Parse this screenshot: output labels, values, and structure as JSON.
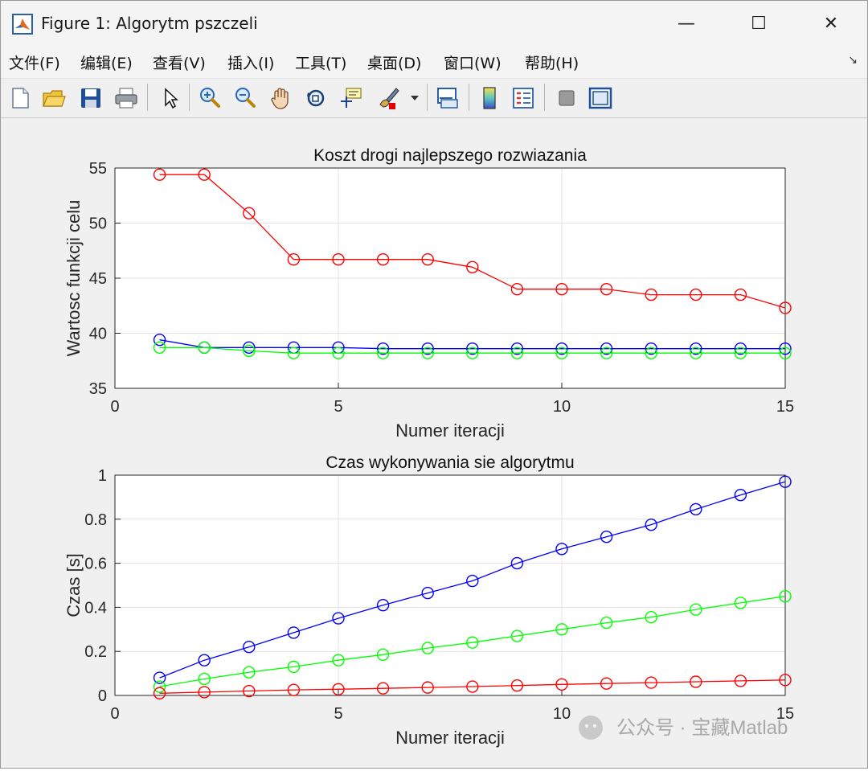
{
  "window": {
    "title": "Figure 1: Algorytm pszczeli",
    "minimize_symbol": "—",
    "maximize_symbol": "☐",
    "close_symbol": "✕"
  },
  "menu": {
    "items": [
      "文件(F)",
      "编辑(E)",
      "查看(V)",
      "插入(I)",
      "工具(T)",
      "桌面(D)",
      "窗口(W)",
      "帮助(H)"
    ],
    "overflow_symbol": "↘"
  },
  "toolbar": {
    "icons": [
      "new-figure-icon",
      "open-file-icon",
      "save-icon",
      "print-icon",
      "pointer-icon",
      "zoom-in-icon",
      "zoom-out-icon",
      "pan-icon",
      "rotate-3d-icon",
      "data-cursor-icon",
      "brush-icon",
      "dropdown-arrow-icon",
      "link-plot-icon",
      "colorbar-icon",
      "legend-icon",
      "hide-plot-tools-icon",
      "show-plot-tools-icon"
    ]
  },
  "colors": {
    "red": "#ff0000",
    "blue": "#0000ff",
    "green": "#00ff00"
  },
  "watermark": {
    "text": "公众号 · 宝藏Matlab"
  },
  "chart_data": [
    {
      "type": "line",
      "title": "Koszt drogi najlepszego rozwiazania",
      "xlabel": "Numer iteracji",
      "ylabel": "Wartosc funkcji celu",
      "xlim": [
        0,
        15
      ],
      "ylim": [
        35,
        55
      ],
      "xticks": [
        0,
        5,
        10,
        15
      ],
      "yticks": [
        35,
        40,
        45,
        50,
        55
      ],
      "grid": true,
      "marker": "circle",
      "x": [
        1,
        2,
        3,
        4,
        5,
        6,
        7,
        8,
        9,
        10,
        11,
        12,
        13,
        14,
        15
      ],
      "series": [
        {
          "color": "#ff0000",
          "values": [
            54.4,
            54.4,
            50.9,
            46.7,
            46.7,
            46.7,
            46.7,
            46.0,
            44.0,
            44.0,
            44.0,
            43.5,
            43.5,
            43.5,
            42.3
          ]
        },
        {
          "color": "#0000ff",
          "values": [
            39.4,
            38.7,
            38.7,
            38.7,
            38.7,
            38.6,
            38.6,
            38.6,
            38.6,
            38.6,
            38.6,
            38.6,
            38.6,
            38.6,
            38.6
          ]
        },
        {
          "color": "#00ff00",
          "values": [
            38.7,
            38.7,
            38.4,
            38.2,
            38.2,
            38.2,
            38.2,
            38.2,
            38.2,
            38.2,
            38.2,
            38.2,
            38.2,
            38.2,
            38.2
          ]
        }
      ]
    },
    {
      "type": "line",
      "title": "Czas wykonywania sie algorytmu",
      "xlabel": "Numer iteracji",
      "ylabel": "Czas [s]",
      "xlim": [
        0,
        15
      ],
      "ylim": [
        0,
        1
      ],
      "xticks": [
        0,
        5,
        10,
        15
      ],
      "yticks": [
        0,
        0.2,
        0.4,
        0.6,
        0.8,
        1
      ],
      "grid": true,
      "marker": "circle",
      "x": [
        1,
        2,
        3,
        4,
        5,
        6,
        7,
        8,
        9,
        10,
        11,
        12,
        13,
        14,
        15
      ],
      "series": [
        {
          "color": "#0000ff",
          "values": [
            0.08,
            0.16,
            0.22,
            0.285,
            0.35,
            0.41,
            0.465,
            0.52,
            0.6,
            0.665,
            0.72,
            0.775,
            0.845,
            0.91,
            0.97
          ]
        },
        {
          "color": "#00ff00",
          "values": [
            0.04,
            0.075,
            0.105,
            0.13,
            0.16,
            0.185,
            0.215,
            0.24,
            0.27,
            0.3,
            0.33,
            0.355,
            0.39,
            0.42,
            0.45
          ]
        },
        {
          "color": "#ff0000",
          "values": [
            0.01,
            0.015,
            0.02,
            0.025,
            0.028,
            0.032,
            0.036,
            0.04,
            0.045,
            0.05,
            0.054,
            0.058,
            0.062,
            0.066,
            0.07
          ]
        }
      ]
    }
  ]
}
